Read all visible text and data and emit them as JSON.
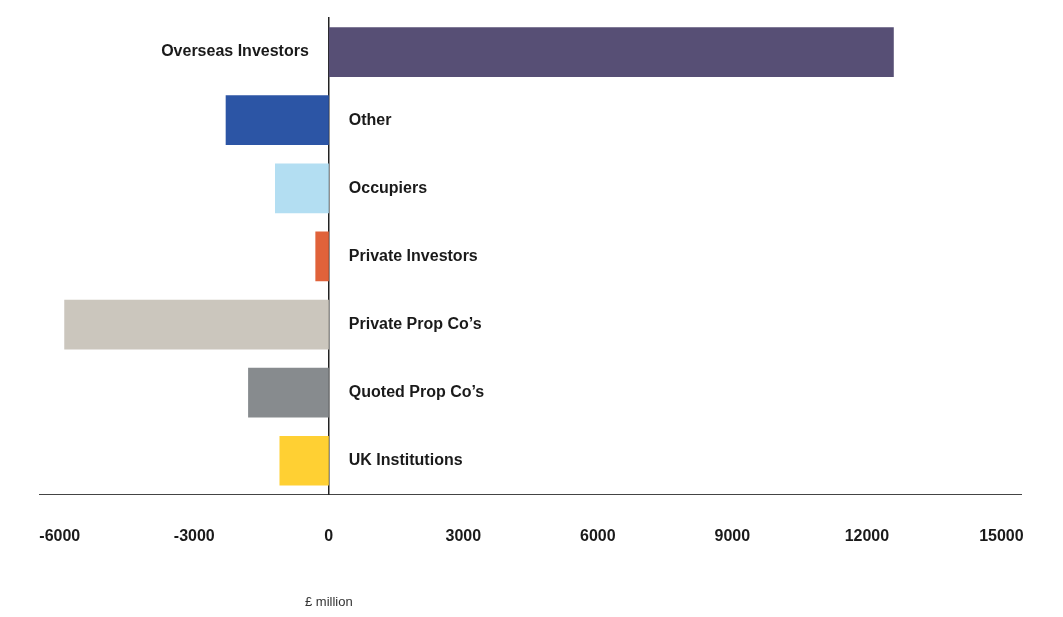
{
  "chart_data": {
    "type": "bar",
    "orientation": "horizontal",
    "xlabel": "£ million",
    "categories": [
      "Overseas Investors",
      "Other",
      "Occupiers",
      "Private Investors",
      "Private Prop Co’s",
      "Quoted Prop Co’s",
      "UK Institutions"
    ],
    "values": [
      12600,
      -2300,
      -1200,
      -300,
      -5900,
      -1800,
      -1100
    ],
    "colors": [
      "#574f75",
      "#2c55a5",
      "#b3def2",
      "#e0623a",
      "#cbc6bd",
      "#878b8e",
      "#ffd033"
    ],
    "xlim": [
      -6450,
      15450
    ],
    "xticks": [
      -6000,
      -3000,
      0,
      3000,
      6000,
      9000,
      12000,
      15000
    ],
    "grid": false,
    "legend": false
  }
}
